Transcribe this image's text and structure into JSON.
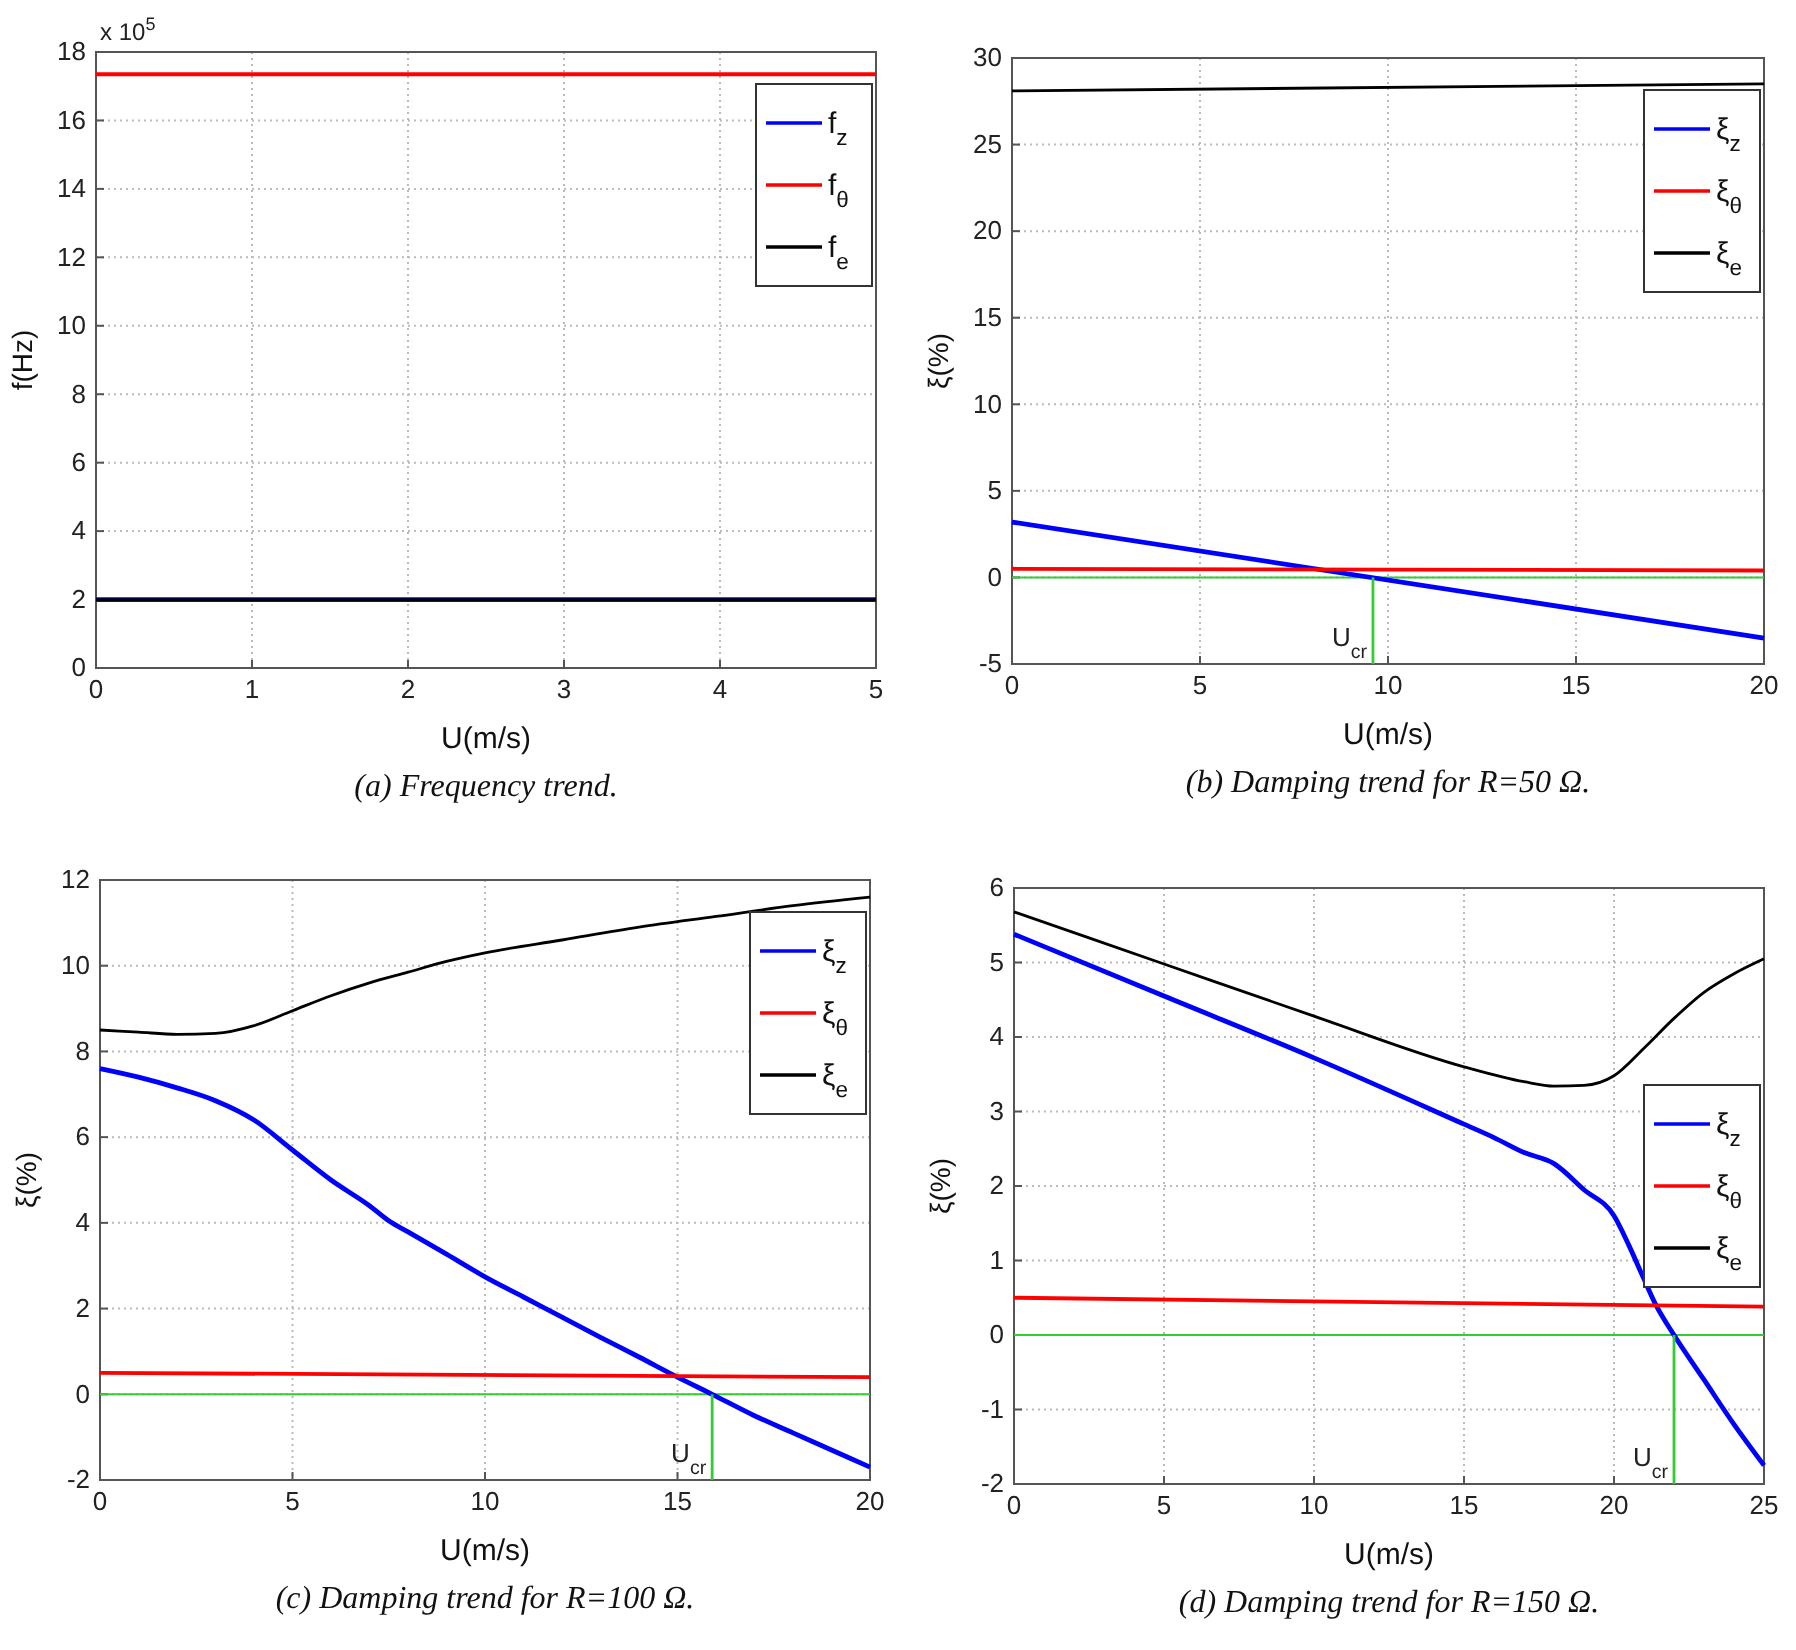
{
  "chart_data": [
    {
      "type": "line",
      "title": "(a) Frequency trend.",
      "xlabel": "U(m/s)",
      "ylabel": "f(Hz)",
      "annotations": [
        "x 10$^{5}$"
      ],
      "xlim": [
        0,
        5
      ],
      "xticks": [
        0,
        1,
        2,
        3,
        4,
        5
      ],
      "ylim": [
        0,
        18
      ],
      "yticks": [
        0,
        2,
        4,
        6,
        8,
        10,
        12,
        14,
        16,
        18
      ],
      "grid": true,
      "legend": "top right",
      "marker": "none",
      "line_style": "solid",
      "series": [
        {
          "name": "f$_{z}$",
          "color": "#0000ff",
          "x": [
            0,
            5
          ],
          "values": [
            2,
            2
          ]
        },
        {
          "name": "f$_{θ}$",
          "color": "#ff0000",
          "x": [
            0,
            5
          ],
          "values": [
            17.35,
            17.35
          ]
        },
        {
          "name": "f$_{e}$",
          "color": "#000000",
          "x": [
            0,
            5
          ],
          "values": [
            2,
            2
          ]
        }
      ]
    },
    {
      "type": "line",
      "title": "(b) Damping trend for R=50 Ω.",
      "xlabel": "U(m/s)",
      "ylabel": "ξ(%)",
      "annotations": [
        {
          "text": "U$_{cr}$",
          "x": 9.6,
          "y": -5
        }
      ],
      "xlim": [
        0,
        20
      ],
      "xticks": [
        0,
        5,
        10,
        15,
        20
      ],
      "ylim": [
        -5,
        30
      ],
      "yticks": [
        -5,
        0,
        5,
        10,
        15,
        20,
        25,
        30
      ],
      "grid": true,
      "legend": "top right",
      "marker": "none",
      "line_style": "solid",
      "ref_lines": [
        {
          "axis": "y",
          "value": 0,
          "color": "#33cc33"
        }
      ],
      "series": [
        {
          "name": "ξ$_{z}$",
          "color": "#0000ff",
          "x": [
            0,
            20
          ],
          "values": [
            3.2,
            -3.5
          ]
        },
        {
          "name": "ξ$_{θ}$",
          "color": "#ff0000",
          "x": [
            0,
            20
          ],
          "values": [
            0.5,
            0.4
          ]
        },
        {
          "name": "ξ$_{e}$",
          "color": "#000000",
          "x": [
            0,
            20
          ],
          "values": [
            28.1,
            28.5
          ]
        },
        {
          "color": "#33cc33",
          "x": [
            9.6,
            9.6
          ],
          "values": [
            -5,
            0
          ]
        }
      ]
    },
    {
      "type": "line",
      "title": "(c) Damping trend for R=100 Ω.",
      "xlabel": "U(m/s)",
      "ylabel": "ξ(%)",
      "annotations": [
        {
          "text": "U$_{cr}$",
          "x": 15.9,
          "y": -2
        }
      ],
      "xlim": [
        0,
        20
      ],
      "xticks": [
        0,
        5,
        10,
        15,
        20
      ],
      "ylim": [
        -2,
        12
      ],
      "yticks": [
        -2,
        0,
        2,
        4,
        6,
        8,
        10,
        12
      ],
      "grid": true,
      "legend": "top right",
      "marker": "none",
      "line_style": "solid",
      "ref_lines": [
        {
          "axis": "y",
          "value": 0,
          "color": "#33cc33"
        }
      ],
      "series": [
        {
          "name": "ξ$_{z}$",
          "color": "#0000ff",
          "x": [
            0,
            1,
            2,
            3,
            4,
            5,
            6,
            7,
            7.5,
            8,
            9,
            10,
            11,
            12,
            13,
            14,
            15,
            15.9,
            17,
            18,
            19,
            20
          ],
          "values": [
            7.6,
            7.4,
            7.15,
            6.85,
            6.4,
            5.7,
            5.0,
            4.4,
            4.05,
            3.79,
            3.27,
            2.74,
            2.27,
            1.8,
            1.33,
            0.87,
            0.4,
            0,
            -0.5,
            -0.9,
            -1.3,
            -1.7
          ]
        },
        {
          "name": "ξ$_{θ}$",
          "color": "#ff0000",
          "x": [
            0,
            20
          ],
          "values": [
            0.5,
            0.4
          ]
        },
        {
          "name": "ξ$_{e}$",
          "color": "#000000",
          "x": [
            0,
            1,
            2,
            3,
            4,
            5,
            6,
            7,
            8,
            9,
            10,
            12,
            14,
            16,
            18,
            20
          ],
          "values": [
            8.5,
            8.45,
            8.4,
            8.42,
            8.6,
            8.95,
            9.3,
            9.6,
            9.85,
            10.1,
            10.3,
            10.6,
            10.9,
            11.15,
            11.4,
            11.6
          ]
        },
        {
          "color": "#33cc33",
          "x": [
            15.9,
            15.9
          ],
          "values": [
            -2,
            0
          ]
        }
      ]
    },
    {
      "type": "line",
      "title": "(d) Damping trend for R=150 Ω.",
      "xlabel": "U(m/s)",
      "ylabel": "ξ(%)",
      "annotations": [
        {
          "text": "U$_{cr}$",
          "x": 22,
          "y": -2
        }
      ],
      "xlim": [
        0,
        25
      ],
      "xticks": [
        0,
        5,
        10,
        15,
        20,
        25
      ],
      "ylim": [
        -2,
        6
      ],
      "yticks": [
        -2,
        -1,
        0,
        1,
        2,
        3,
        4,
        5,
        6
      ],
      "grid": true,
      "legend": "right",
      "marker": "none",
      "line_style": "solid",
      "ref_lines": [
        {
          "axis": "y",
          "value": 0,
          "color": "#33cc33"
        }
      ],
      "series": [
        {
          "name": "ξ$_{z}$",
          "color": "#0000ff",
          "x": [
            0,
            5,
            10,
            15,
            16,
            17,
            18,
            19,
            20,
            20.5,
            21,
            21.4,
            22,
            23,
            24,
            25
          ],
          "values": [
            5.38,
            4.55,
            3.72,
            2.83,
            2.65,
            2.45,
            2.3,
            1.95,
            1.6,
            1.2,
            0.75,
            0.4,
            0,
            -0.6,
            -1.2,
            -1.75
          ]
        },
        {
          "name": "ξ$_{θ}$",
          "color": "#ff0000",
          "x": [
            0,
            25
          ],
          "values": [
            0.5,
            0.38
          ]
        },
        {
          "name": "ξ$_{e}$",
          "color": "#000000",
          "x": [
            0,
            5,
            10,
            15,
            17,
            18,
            19,
            20,
            21,
            22,
            23,
            24,
            25
          ],
          "values": [
            5.68,
            4.98,
            4.28,
            3.6,
            3.4,
            3.34,
            3.35,
            3.48,
            3.85,
            4.25,
            4.6,
            4.85,
            5.05
          ]
        },
        {
          "color": "#33cc33",
          "x": [
            22,
            22
          ],
          "values": [
            -2,
            0
          ]
        }
      ]
    }
  ]
}
